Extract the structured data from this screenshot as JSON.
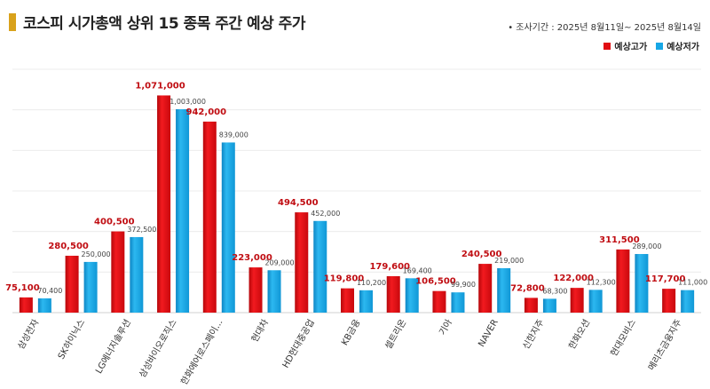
{
  "header": {
    "title": "코스피 시가총액 상위 15 종목 주간 예상 주가",
    "period": "•  조사기간 : 2025년 8월11일~ 2025년 8월14일"
  },
  "colors": {
    "high": "#e10d12",
    "low": "#17a7e6",
    "title_marker": "#d9a21b"
  },
  "chart_data": {
    "type": "bar",
    "title": "코스피 시가총액 상위 15 종목 주간 예상 주가",
    "categories": [
      "삼성전자",
      "SK하이닉스",
      "LG에너지솔루션",
      "삼성바이오로직스",
      "한화에어로스페이...",
      "현대차",
      "HD현대중공업",
      "KB금융",
      "셀트리온",
      "기아",
      "NAVER",
      "신한지주",
      "한화오션",
      "현대모비스",
      "메리츠금융지주"
    ],
    "series": [
      {
        "name": "예상고가",
        "values": [
          75100,
          280500,
          400500,
          1071000,
          942000,
          223000,
          494500,
          119800,
          179600,
          106500,
          240500,
          72800,
          122000,
          311500,
          117700
        ],
        "labels": [
          "75,100",
          "280,500",
          "400,500",
          "1,071,000",
          "942,000",
          "223,000",
          "494,500",
          "119,800",
          "179,600",
          "106,500",
          "240,500",
          "72,800",
          "122,000",
          "311,500",
          "117,700"
        ]
      },
      {
        "name": "예상저가",
        "values": [
          70400,
          250000,
          372500,
          1003000,
          839000,
          209000,
          452000,
          110200,
          169400,
          99900,
          219000,
          68300,
          112300,
          289000,
          111000
        ],
        "labels": [
          "70,400",
          "250,000",
          "372,500",
          "1,003,000",
          "839,000",
          "209,000",
          "452,000",
          "110,200",
          "169,400",
          "99,900",
          "219,000",
          "68,300",
          "112,300",
          "289,000",
          "111,000"
        ]
      }
    ],
    "ylim": [
      0,
      1200000
    ],
    "grid": true,
    "legend_position": "top-right"
  }
}
